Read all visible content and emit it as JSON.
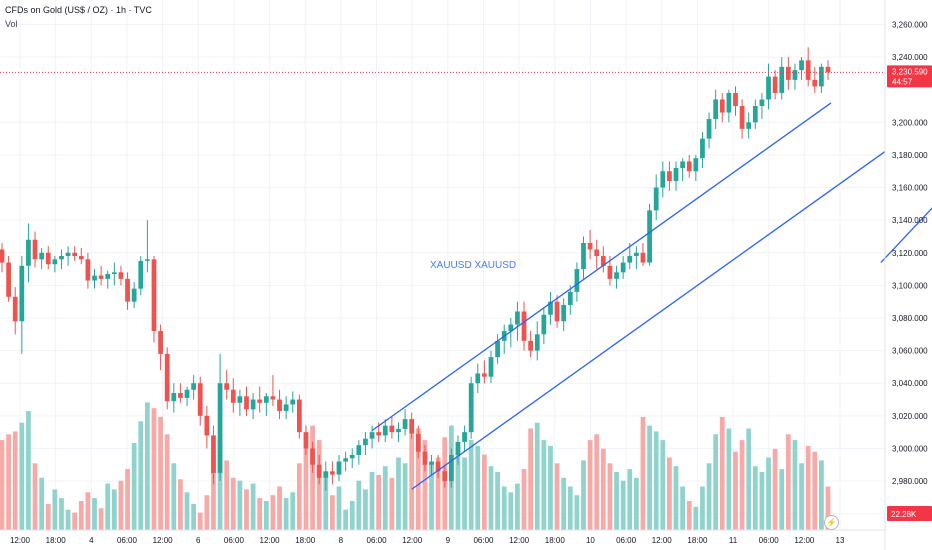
{
  "header": {
    "title": "CFDs on Gold (US$ / OZ) · 1h · TVC",
    "volume_label": "Vol"
  },
  "watermark": "XAUUSD XAUUSD",
  "colors": {
    "up": "#26a69a",
    "down": "#ef5350",
    "up_vol": "#8fd3cc",
    "down_vol": "#f7a9a7",
    "channel": "#2962ff",
    "price_tag": "#f23645",
    "vol_tag": "#f23645",
    "last_price_line": "#f23645"
  },
  "icons": {
    "replay": "lightning-icon"
  },
  "chart_data": {
    "type": "candlestick",
    "symbol": "XAUUSD",
    "interval": "1h",
    "y_ticks": [
      "3,260.000",
      "3,240.000",
      "3,200.000",
      "3,180.000",
      "3,160.000",
      "3,140.000",
      "3,120.000",
      "3,100.000",
      "3,080.000",
      "3,060.000",
      "3,040.000",
      "3,020.000",
      "3,000.000",
      "2,980.000",
      "2,960.000"
    ],
    "ylim": [
      2950,
      3275
    ],
    "x_ticks": [
      "12:00",
      "18:00",
      "4",
      "06:00",
      "12:00",
      "6",
      "06:00",
      "12:00",
      "18:00",
      "8",
      "06:00",
      "12:00",
      "9",
      "06:00",
      "12:00",
      "18:00",
      "10",
      "06:00",
      "12:00",
      "18:00",
      "11",
      "06:00",
      "12:00",
      "13"
    ],
    "last_price": 3230.59,
    "last_price_label": "3,230.590",
    "countdown": "44:57",
    "volume_label": "22.28K",
    "channel": {
      "upper": [
        [
          56,
          3011
        ],
        [
          149,
          3280
        ]
      ],
      "lower": [
        [
          62,
          2975
        ],
        [
          163,
          3267
        ]
      ]
    },
    "projection": [
      [
        133,
        3114
      ],
      [
        146,
        3170
      ],
      [
        148,
        3205
      ],
      [
        150,
        3195
      ],
      [
        153,
        3209
      ],
      [
        155,
        3235
      ],
      [
        157,
        3215
      ],
      [
        161,
        3242
      ]
    ],
    "candles": [
      {
        "o": 3122,
        "h": 3126,
        "l": 3108,
        "c": 3114,
        "v": 0.62
      },
      {
        "o": 3114,
        "h": 3118,
        "l": 3090,
        "c": 3093,
        "v": 0.66
      },
      {
        "o": 3093,
        "h": 3099,
        "l": 3070,
        "c": 3078,
        "v": 0.68
      },
      {
        "o": 3078,
        "h": 3118,
        "l": 3058,
        "c": 3112,
        "v": 0.74
      },
      {
        "o": 3112,
        "h": 3138,
        "l": 3102,
        "c": 3128,
        "v": 0.82
      },
      {
        "o": 3128,
        "h": 3133,
        "l": 3111,
        "c": 3116,
        "v": 0.46
      },
      {
        "o": 3116,
        "h": 3123,
        "l": 3110,
        "c": 3120,
        "v": 0.36
      },
      {
        "o": 3120,
        "h": 3124,
        "l": 3110,
        "c": 3113,
        "v": 0.18
      },
      {
        "o": 3113,
        "h": 3118,
        "l": 3108,
        "c": 3116,
        "v": 0.28
      },
      {
        "o": 3116,
        "h": 3122,
        "l": 3110,
        "c": 3118,
        "v": 0.22
      },
      {
        "o": 3118,
        "h": 3124,
        "l": 3112,
        "c": 3120,
        "v": 0.14
      },
      {
        "o": 3120,
        "h": 3124,
        "l": 3115,
        "c": 3118,
        "v": 0.12
      },
      {
        "o": 3118,
        "h": 3123,
        "l": 3113,
        "c": 3116,
        "v": 0.2
      },
      {
        "o": 3116,
        "h": 3120,
        "l": 3098,
        "c": 3103,
        "v": 0.26
      },
      {
        "o": 3103,
        "h": 3110,
        "l": 3098,
        "c": 3106,
        "v": 0.22
      },
      {
        "o": 3106,
        "h": 3112,
        "l": 3100,
        "c": 3104,
        "v": 0.15
      },
      {
        "o": 3104,
        "h": 3109,
        "l": 3098,
        "c": 3107,
        "v": 0.32
      },
      {
        "o": 3107,
        "h": 3114,
        "l": 3100,
        "c": 3108,
        "v": 0.28
      },
      {
        "o": 3108,
        "h": 3112,
        "l": 3100,
        "c": 3104,
        "v": 0.34
      },
      {
        "o": 3104,
        "h": 3108,
        "l": 3085,
        "c": 3090,
        "v": 0.42
      },
      {
        "o": 3090,
        "h": 3102,
        "l": 3086,
        "c": 3098,
        "v": 0.6
      },
      {
        "o": 3098,
        "h": 3118,
        "l": 3094,
        "c": 3115,
        "v": 0.75
      },
      {
        "o": 3115,
        "h": 3140,
        "l": 3108,
        "c": 3116,
        "v": 0.88
      },
      {
        "o": 3116,
        "h": 3118,
        "l": 3065,
        "c": 3072,
        "v": 0.84
      },
      {
        "o": 3072,
        "h": 3076,
        "l": 3048,
        "c": 3058,
        "v": 0.78
      },
      {
        "o": 3058,
        "h": 3062,
        "l": 3024,
        "c": 3029,
        "v": 0.66
      },
      {
        "o": 3029,
        "h": 3040,
        "l": 3022,
        "c": 3034,
        "v": 0.46
      },
      {
        "o": 3034,
        "h": 3040,
        "l": 3028,
        "c": 3031,
        "v": 0.35
      },
      {
        "o": 3031,
        "h": 3038,
        "l": 3026,
        "c": 3036,
        "v": 0.26
      },
      {
        "o": 3036,
        "h": 3045,
        "l": 3030,
        "c": 3040,
        "v": 0.18
      },
      {
        "o": 3040,
        "h": 3044,
        "l": 3014,
        "c": 3020,
        "v": 0.12
      },
      {
        "o": 3020,
        "h": 3026,
        "l": 3000,
        "c": 3008,
        "v": 0.24
      },
      {
        "o": 3008,
        "h": 3014,
        "l": 2978,
        "c": 2985,
        "v": 0.52
      },
      {
        "o": 2985,
        "h": 3058,
        "l": 2980,
        "c": 3040,
        "v": 0.62
      },
      {
        "o": 3040,
        "h": 3048,
        "l": 3030,
        "c": 3036,
        "v": 0.48
      },
      {
        "o": 3036,
        "h": 3043,
        "l": 3022,
        "c": 3028,
        "v": 0.36
      },
      {
        "o": 3028,
        "h": 3036,
        "l": 3020,
        "c": 3032,
        "v": 0.34
      },
      {
        "o": 3032,
        "h": 3038,
        "l": 3020,
        "c": 3024,
        "v": 0.28
      },
      {
        "o": 3024,
        "h": 3034,
        "l": 3018,
        "c": 3030,
        "v": 0.32
      },
      {
        "o": 3030,
        "h": 3038,
        "l": 3022,
        "c": 3028,
        "v": 0.22
      },
      {
        "o": 3028,
        "h": 3034,
        "l": 3020,
        "c": 3032,
        "v": 0.2
      },
      {
        "o": 3032,
        "h": 3045,
        "l": 3026,
        "c": 3030,
        "v": 0.24
      },
      {
        "o": 3030,
        "h": 3036,
        "l": 3018,
        "c": 3023,
        "v": 0.3
      },
      {
        "o": 3023,
        "h": 3032,
        "l": 3018,
        "c": 3027,
        "v": 0.22
      },
      {
        "o": 3027,
        "h": 3035,
        "l": 3022,
        "c": 3030,
        "v": 0.26
      },
      {
        "o": 3030,
        "h": 3033,
        "l": 3006,
        "c": 3010,
        "v": 0.46
      },
      {
        "o": 3010,
        "h": 3014,
        "l": 2996,
        "c": 3000,
        "v": 0.58
      },
      {
        "o": 3000,
        "h": 3004,
        "l": 2985,
        "c": 2990,
        "v": 0.72
      },
      {
        "o": 2990,
        "h": 2996,
        "l": 2978,
        "c": 2982,
        "v": 0.62
      },
      {
        "o": 2982,
        "h": 2992,
        "l": 2974,
        "c": 2986,
        "v": 0.4
      },
      {
        "o": 2986,
        "h": 2992,
        "l": 2978,
        "c": 2984,
        "v": 0.24
      },
      {
        "o": 2984,
        "h": 2996,
        "l": 2980,
        "c": 2992,
        "v": 0.3
      },
      {
        "o": 2992,
        "h": 2998,
        "l": 2986,
        "c": 2994,
        "v": 0.14
      },
      {
        "o": 2994,
        "h": 3000,
        "l": 2988,
        "c": 2996,
        "v": 0.2
      },
      {
        "o": 2996,
        "h": 3005,
        "l": 2990,
        "c": 3002,
        "v": 0.34
      },
      {
        "o": 3002,
        "h": 3010,
        "l": 2996,
        "c": 3006,
        "v": 0.28
      },
      {
        "o": 3006,
        "h": 3014,
        "l": 3000,
        "c": 3010,
        "v": 0.4
      },
      {
        "o": 3010,
        "h": 3016,
        "l": 3004,
        "c": 3008,
        "v": 0.38
      },
      {
        "o": 3008,
        "h": 3018,
        "l": 3004,
        "c": 3014,
        "v": 0.44
      },
      {
        "o": 3014,
        "h": 3020,
        "l": 3006,
        "c": 3010,
        "v": 0.36
      },
      {
        "o": 3010,
        "h": 3016,
        "l": 3004,
        "c": 3012,
        "v": 0.5
      },
      {
        "o": 3012,
        "h": 3024,
        "l": 3008,
        "c": 3018,
        "v": 0.46
      },
      {
        "o": 3018,
        "h": 3022,
        "l": 3006,
        "c": 3009,
        "v": 0.66
      },
      {
        "o": 3009,
        "h": 3014,
        "l": 2994,
        "c": 2998,
        "v": 0.7
      },
      {
        "o": 2998,
        "h": 3002,
        "l": 2986,
        "c": 2990,
        "v": 0.62
      },
      {
        "o": 2990,
        "h": 2996,
        "l": 2984,
        "c": 2992,
        "v": 0.46
      },
      {
        "o": 2992,
        "h": 2996,
        "l": 2982,
        "c": 2986,
        "v": 0.5
      },
      {
        "o": 2986,
        "h": 2990,
        "l": 2976,
        "c": 2980,
        "v": 0.64
      },
      {
        "o": 2980,
        "h": 3000,
        "l": 2976,
        "c": 2996,
        "v": 0.72
      },
      {
        "o": 2996,
        "h": 3008,
        "l": 2990,
        "c": 3004,
        "v": 0.56
      },
      {
        "o": 3004,
        "h": 3014,
        "l": 2998,
        "c": 3010,
        "v": 0.5
      },
      {
        "o": 3010,
        "h": 3044,
        "l": 3006,
        "c": 3040,
        "v": 0.62
      },
      {
        "o": 3040,
        "h": 3052,
        "l": 3034,
        "c": 3046,
        "v": 0.58
      },
      {
        "o": 3046,
        "h": 3054,
        "l": 3040,
        "c": 3044,
        "v": 0.52
      },
      {
        "o": 3044,
        "h": 3060,
        "l": 3040,
        "c": 3056,
        "v": 0.44
      },
      {
        "o": 3056,
        "h": 3070,
        "l": 3052,
        "c": 3066,
        "v": 0.4
      },
      {
        "o": 3066,
        "h": 3076,
        "l": 3058,
        "c": 3072,
        "v": 0.3
      },
      {
        "o": 3072,
        "h": 3080,
        "l": 3062,
        "c": 3076,
        "v": 0.26
      },
      {
        "o": 3076,
        "h": 3090,
        "l": 3066,
        "c": 3084,
        "v": 0.32
      },
      {
        "o": 3084,
        "h": 3090,
        "l": 3060,
        "c": 3066,
        "v": 0.42
      },
      {
        "o": 3066,
        "h": 3072,
        "l": 3056,
        "c": 3060,
        "v": 0.7
      },
      {
        "o": 3060,
        "h": 3078,
        "l": 3054,
        "c": 3070,
        "v": 0.74
      },
      {
        "o": 3070,
        "h": 3086,
        "l": 3064,
        "c": 3082,
        "v": 0.62
      },
      {
        "o": 3082,
        "h": 3096,
        "l": 3076,
        "c": 3090,
        "v": 0.58
      },
      {
        "o": 3090,
        "h": 3094,
        "l": 3074,
        "c": 3078,
        "v": 0.46
      },
      {
        "o": 3078,
        "h": 3092,
        "l": 3072,
        "c": 3088,
        "v": 0.36
      },
      {
        "o": 3088,
        "h": 3100,
        "l": 3082,
        "c": 3096,
        "v": 0.3
      },
      {
        "o": 3096,
        "h": 3114,
        "l": 3090,
        "c": 3110,
        "v": 0.24
      },
      {
        "o": 3110,
        "h": 3130,
        "l": 3104,
        "c": 3126,
        "v": 0.48
      },
      {
        "o": 3126,
        "h": 3134,
        "l": 3116,
        "c": 3122,
        "v": 0.62
      },
      {
        "o": 3122,
        "h": 3128,
        "l": 3110,
        "c": 3118,
        "v": 0.66
      },
      {
        "o": 3118,
        "h": 3124,
        "l": 3108,
        "c": 3112,
        "v": 0.56
      },
      {
        "o": 3112,
        "h": 3118,
        "l": 3100,
        "c": 3104,
        "v": 0.46
      },
      {
        "o": 3104,
        "h": 3112,
        "l": 3098,
        "c": 3108,
        "v": 0.4
      },
      {
        "o": 3108,
        "h": 3118,
        "l": 3104,
        "c": 3114,
        "v": 0.34
      },
      {
        "o": 3114,
        "h": 3126,
        "l": 3110,
        "c": 3118,
        "v": 0.42
      },
      {
        "o": 3118,
        "h": 3124,
        "l": 3110,
        "c": 3120,
        "v": 0.36
      },
      {
        "o": 3120,
        "h": 3126,
        "l": 3112,
        "c": 3114,
        "v": 0.78
      },
      {
        "o": 3114,
        "h": 3150,
        "l": 3112,
        "c": 3146,
        "v": 0.72
      },
      {
        "o": 3146,
        "h": 3168,
        "l": 3140,
        "c": 3160,
        "v": 0.68
      },
      {
        "o": 3160,
        "h": 3176,
        "l": 3154,
        "c": 3170,
        "v": 0.62
      },
      {
        "o": 3170,
        "h": 3176,
        "l": 3158,
        "c": 3164,
        "v": 0.5
      },
      {
        "o": 3164,
        "h": 3176,
        "l": 3158,
        "c": 3172,
        "v": 0.44
      },
      {
        "o": 3172,
        "h": 3178,
        "l": 3164,
        "c": 3176,
        "v": 0.3
      },
      {
        "o": 3176,
        "h": 3180,
        "l": 3166,
        "c": 3170,
        "v": 0.2
      },
      {
        "o": 3170,
        "h": 3180,
        "l": 3164,
        "c": 3178,
        "v": 0.16
      },
      {
        "o": 3178,
        "h": 3194,
        "l": 3172,
        "c": 3190,
        "v": 0.3
      },
      {
        "o": 3190,
        "h": 3206,
        "l": 3184,
        "c": 3202,
        "v": 0.46
      },
      {
        "o": 3202,
        "h": 3220,
        "l": 3196,
        "c": 3214,
        "v": 0.66
      },
      {
        "o": 3214,
        "h": 3218,
        "l": 3200,
        "c": 3206,
        "v": 0.78
      },
      {
        "o": 3206,
        "h": 3220,
        "l": 3200,
        "c": 3218,
        "v": 0.7
      },
      {
        "o": 3218,
        "h": 3222,
        "l": 3204,
        "c": 3210,
        "v": 0.54
      },
      {
        "o": 3210,
        "h": 3214,
        "l": 3190,
        "c": 3196,
        "v": 0.62
      },
      {
        "o": 3196,
        "h": 3206,
        "l": 3190,
        "c": 3200,
        "v": 0.7
      },
      {
        "o": 3200,
        "h": 3214,
        "l": 3196,
        "c": 3210,
        "v": 0.44
      },
      {
        "o": 3210,
        "h": 3218,
        "l": 3202,
        "c": 3214,
        "v": 0.4
      },
      {
        "o": 3214,
        "h": 3236,
        "l": 3208,
        "c": 3228,
        "v": 0.5
      },
      {
        "o": 3228,
        "h": 3232,
        "l": 3214,
        "c": 3218,
        "v": 0.56
      },
      {
        "o": 3218,
        "h": 3240,
        "l": 3214,
        "c": 3234,
        "v": 0.42
      },
      {
        "o": 3234,
        "h": 3240,
        "l": 3220,
        "c": 3226,
        "v": 0.66
      },
      {
        "o": 3226,
        "h": 3236,
        "l": 3220,
        "c": 3232,
        "v": 0.62
      },
      {
        "o": 3232,
        "h": 3240,
        "l": 3226,
        "c": 3238,
        "v": 0.46
      },
      {
        "o": 3238,
        "h": 3246,
        "l": 3222,
        "c": 3226,
        "v": 0.58
      },
      {
        "o": 3226,
        "h": 3234,
        "l": 3218,
        "c": 3222,
        "v": 0.54
      },
      {
        "o": 3222,
        "h": 3236,
        "l": 3218,
        "c": 3234,
        "v": 0.48
      },
      {
        "o": 3234,
        "h": 3238,
        "l": 3226,
        "c": 3230.59,
        "v": 0.3
      }
    ]
  }
}
